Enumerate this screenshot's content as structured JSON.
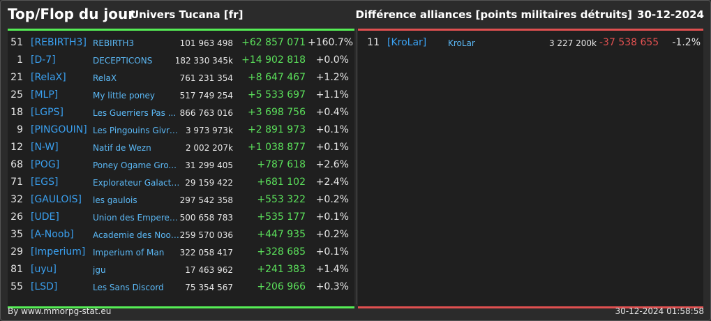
{
  "header": {
    "title": "Top/Flop du jour",
    "universe": "Univers Tucana [fr]",
    "metric": "Différence alliances [points militaires détruits]",
    "date": "30-12-2024"
  },
  "colors": {
    "top_accent": "#55ee55",
    "flop_accent": "#e05050",
    "tag_color": "#3aa0f0"
  },
  "top": [
    {
      "rank": "51",
      "tag": "[REBIRTH3]",
      "name": "REBIRTH3",
      "points": "101 963 498",
      "diff": "+62 857 071",
      "pct": "+160.7%"
    },
    {
      "rank": "1",
      "tag": "[D-7]",
      "name": "DECEPTICONS",
      "points": "182 330 345k",
      "diff": "+14 902 818",
      "pct": "+0.0%"
    },
    {
      "rank": "21",
      "tag": "[RelaX]",
      "name": "RelaX",
      "points": "761 231 354",
      "diff": "+8 647 467",
      "pct": "+1.2%"
    },
    {
      "rank": "25",
      "tag": "[MLP]",
      "name": "My little poney",
      "points": "517 749 254",
      "diff": "+5 533 697",
      "pct": "+1.1%"
    },
    {
      "rank": "18",
      "tag": "[LGPS]",
      "name": "Les Guerriers Pas ...",
      "points": "866 763 016",
      "diff": "+3 698 756",
      "pct": "+0.4%"
    },
    {
      "rank": "9",
      "tag": "[PINGOUIN]",
      "name": "Les Pingouins Givre...",
      "points": "3 973 973k",
      "diff": "+2 891 973",
      "pct": "+0.1%"
    },
    {
      "rank": "12",
      "tag": "[N-W]",
      "name": "Natif de Wezn",
      "points": "2 002 207k",
      "diff": "+1 038 877",
      "pct": "+0.1%"
    },
    {
      "rank": "68",
      "tag": "[POG]",
      "name": "Poney Ogame Gro...",
      "points": "31 299 405",
      "diff": "+787 618",
      "pct": "+2.6%"
    },
    {
      "rank": "71",
      "tag": "[EGS]",
      "name": "Explorateur Galacti...",
      "points": "29 159 422",
      "diff": "+681 102",
      "pct": "+2.4%"
    },
    {
      "rank": "32",
      "tag": "[GAULOIS]",
      "name": "les gaulois",
      "points": "297 542 358",
      "diff": "+553 322",
      "pct": "+0.2%"
    },
    {
      "rank": "26",
      "tag": "[UDE]",
      "name": "Union des Empereur...",
      "points": "500 658 783",
      "diff": "+535 177",
      "pct": "+0.1%"
    },
    {
      "rank": "35",
      "tag": "[A-Noob]",
      "name": "Academie des Noob...",
      "points": "259 570 036",
      "diff": "+447 935",
      "pct": "+0.2%"
    },
    {
      "rank": "29",
      "tag": "[Imperium]",
      "name": "Imperium of Man",
      "points": "322 058 417",
      "diff": "+328 685",
      "pct": "+0.1%"
    },
    {
      "rank": "81",
      "tag": "[uyu]",
      "name": "jgu",
      "points": "17 463 962",
      "diff": "+241 383",
      "pct": "+1.4%"
    },
    {
      "rank": "55",
      "tag": "[LSD]",
      "name": "Les Sans Discord",
      "points": "75 354 567",
      "diff": "+206 966",
      "pct": "+0.3%"
    }
  ],
  "flop": [
    {
      "rank": "11",
      "tag": "[KroLar]",
      "name": "KroLar",
      "points": "3 227 200k",
      "diff": "-37 538 655",
      "pct": "-1.2%"
    }
  ],
  "footer": {
    "source": "By www.mmorpg-stat.eu",
    "timestamp": "30-12-2024 01:58:58"
  }
}
